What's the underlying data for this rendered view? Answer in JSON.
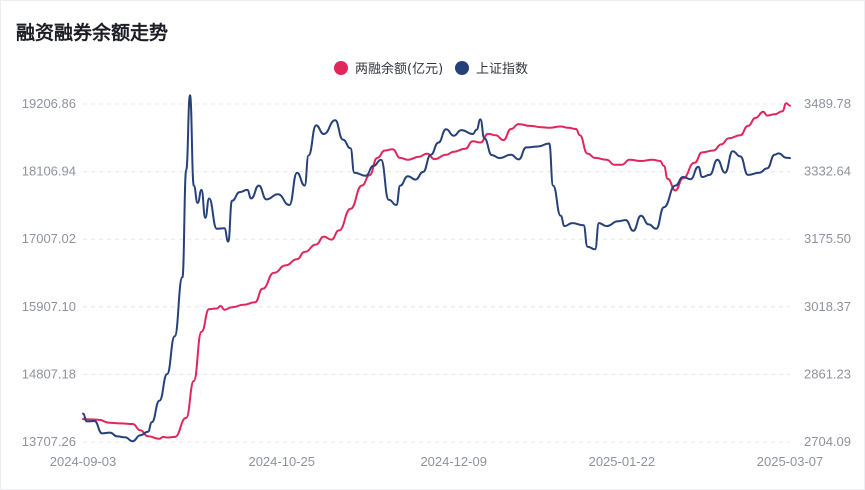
{
  "chart_data": {
    "type": "line",
    "title": "融资融券余额走势",
    "x_tick_labels": [
      "2024-09-03",
      "2024-10-25",
      "2024-12-09",
      "2025-01-22",
      "2025-03-07"
    ],
    "x_range": [
      "2024-09-03",
      "2025-03-07"
    ],
    "y_left": {
      "ticks": [
        "13707.26",
        "14807.18",
        "15907.10",
        "17007.02",
        "18106.94",
        "19206.86"
      ],
      "range": [
        13707.26,
        19206.86
      ]
    },
    "y_right": {
      "ticks": [
        "2704.09",
        "2861.23",
        "3018.37",
        "3175.50",
        "3332.64",
        "3489.78"
      ],
      "range": [
        2704.09,
        3489.78
      ]
    },
    "grid": true,
    "legend_position": "top-center",
    "colors": {
      "margin": "#e0265a",
      "index": "#26417a"
    },
    "series": [
      {
        "name": "两融余额(亿元)",
        "axis": "left",
        "points": [
          [
            "2024-09-03",
            14080
          ],
          [
            "2024-09-05",
            14075
          ],
          [
            "2024-09-07",
            14070
          ],
          [
            "2024-09-10",
            14020
          ],
          [
            "2024-09-13",
            14010
          ],
          [
            "2024-09-16",
            14000
          ],
          [
            "2024-09-18",
            13900
          ],
          [
            "2024-09-20",
            13800
          ],
          [
            "2024-09-23",
            13760
          ],
          [
            "2024-09-24",
            13790
          ],
          [
            "2024-09-25",
            13780
          ],
          [
            "2024-09-27",
            13790
          ],
          [
            "2024-09-30",
            14100
          ],
          [
            "2024-10-02",
            14700
          ],
          [
            "2024-10-04",
            15500
          ],
          [
            "2024-10-06",
            15870
          ],
          [
            "2024-10-08",
            15880
          ],
          [
            "2024-10-09",
            15920
          ],
          [
            "2024-10-10",
            15860
          ],
          [
            "2024-10-12",
            15900
          ],
          [
            "2024-10-15",
            15940
          ],
          [
            "2024-10-18",
            15980
          ],
          [
            "2024-10-20",
            16200
          ],
          [
            "2024-10-23",
            16460
          ],
          [
            "2024-10-26",
            16580
          ],
          [
            "2024-10-29",
            16680
          ],
          [
            "2024-10-31",
            16800
          ],
          [
            "2024-11-03",
            16920
          ],
          [
            "2024-11-05",
            17050
          ],
          [
            "2024-11-07",
            17000
          ],
          [
            "2024-11-09",
            17150
          ],
          [
            "2024-11-12",
            17500
          ],
          [
            "2024-11-15",
            17880
          ],
          [
            "2024-11-17",
            18050
          ],
          [
            "2024-11-19",
            18330
          ],
          [
            "2024-11-21",
            18450
          ],
          [
            "2024-11-23",
            18470
          ],
          [
            "2024-11-25",
            18330
          ],
          [
            "2024-11-27",
            18300
          ],
          [
            "2024-11-30",
            18350
          ],
          [
            "2024-12-02",
            18400
          ],
          [
            "2024-12-04",
            18310
          ],
          [
            "2024-12-07",
            18380
          ],
          [
            "2024-12-09",
            18430
          ],
          [
            "2024-12-12",
            18480
          ],
          [
            "2024-12-14",
            18600
          ],
          [
            "2024-12-16",
            18580
          ],
          [
            "2024-12-18",
            18720
          ],
          [
            "2024-12-20",
            18700
          ],
          [
            "2024-12-22",
            18620
          ],
          [
            "2024-12-24",
            18800
          ],
          [
            "2024-12-26",
            18880
          ],
          [
            "2024-12-29",
            18850
          ],
          [
            "2025-01-01",
            18830
          ],
          [
            "2025-01-03",
            18820
          ],
          [
            "2025-01-06",
            18840
          ],
          [
            "2025-01-08",
            18820
          ],
          [
            "2025-01-10",
            18800
          ],
          [
            "2025-01-11",
            18700
          ],
          [
            "2025-01-13",
            18400
          ],
          [
            "2025-01-15",
            18330
          ],
          [
            "2025-01-18",
            18300
          ],
          [
            "2025-01-20",
            18220
          ],
          [
            "2025-01-22",
            18220
          ],
          [
            "2025-01-24",
            18300
          ],
          [
            "2025-01-27",
            18280
          ],
          [
            "2025-01-30",
            18300
          ],
          [
            "2025-02-01",
            18280
          ],
          [
            "2025-02-02",
            18200
          ],
          [
            "2025-02-03",
            17990
          ],
          [
            "2025-02-05",
            17800
          ],
          [
            "2025-02-07",
            18000
          ],
          [
            "2025-02-10",
            18250
          ],
          [
            "2025-02-12",
            18420
          ],
          [
            "2025-02-15",
            18450
          ],
          [
            "2025-02-17",
            18550
          ],
          [
            "2025-02-19",
            18650
          ],
          [
            "2025-02-22",
            18700
          ],
          [
            "2025-02-24",
            18850
          ],
          [
            "2025-02-26",
            18980
          ],
          [
            "2025-02-28",
            19080
          ],
          [
            "2025-03-01",
            19020
          ],
          [
            "2025-03-03",
            19040
          ],
          [
            "2025-03-05",
            19090
          ],
          [
            "2025-03-06",
            19220
          ],
          [
            "2025-03-07",
            19180
          ]
        ]
      },
      {
        "name": "上证指数",
        "axis": "right",
        "points": [
          [
            "2024-09-03",
            2770
          ],
          [
            "2024-09-04",
            2752
          ],
          [
            "2024-09-06",
            2753
          ],
          [
            "2024-09-08",
            2724
          ],
          [
            "2024-09-10",
            2726
          ],
          [
            "2024-09-12",
            2717
          ],
          [
            "2024-09-14",
            2715
          ],
          [
            "2024-09-16",
            2706
          ],
          [
            "2024-09-18",
            2720
          ],
          [
            "2024-09-20",
            2728
          ],
          [
            "2024-09-21",
            2750
          ],
          [
            "2024-09-23",
            2800
          ],
          [
            "2024-09-25",
            2862
          ],
          [
            "2024-09-27",
            2950
          ],
          [
            "2024-09-29",
            3087
          ],
          [
            "2024-09-30",
            3336
          ],
          [
            "2024-10-01",
            3510
          ],
          [
            "2024-10-02",
            3300
          ],
          [
            "2024-10-03",
            3260
          ],
          [
            "2024-10-04",
            3290
          ],
          [
            "2024-10-05",
            3225
          ],
          [
            "2024-10-06",
            3270
          ],
          [
            "2024-10-08",
            3200
          ],
          [
            "2024-10-10",
            3201
          ],
          [
            "2024-10-11",
            3170
          ],
          [
            "2024-10-12",
            3265
          ],
          [
            "2024-10-14",
            3285
          ],
          [
            "2024-10-16",
            3290
          ],
          [
            "2024-10-17",
            3270
          ],
          [
            "2024-10-19",
            3300
          ],
          [
            "2024-10-21",
            3268
          ],
          [
            "2024-10-24",
            3280
          ],
          [
            "2024-10-27",
            3255
          ],
          [
            "2024-10-29",
            3330
          ],
          [
            "2024-10-31",
            3300
          ],
          [
            "2024-11-01",
            3370
          ],
          [
            "2024-11-03",
            3440
          ],
          [
            "2024-11-05",
            3420
          ],
          [
            "2024-11-08",
            3452
          ],
          [
            "2024-11-10",
            3407
          ],
          [
            "2024-11-12",
            3387
          ],
          [
            "2024-11-13",
            3330
          ],
          [
            "2024-11-16",
            3323
          ],
          [
            "2024-11-18",
            3346
          ],
          [
            "2024-11-20",
            3360
          ],
          [
            "2024-11-22",
            3267
          ],
          [
            "2024-11-24",
            3255
          ],
          [
            "2024-11-25",
            3300
          ],
          [
            "2024-11-27",
            3322
          ],
          [
            "2024-11-29",
            3314
          ],
          [
            "2024-12-01",
            3332
          ],
          [
            "2024-12-03",
            3372
          ],
          [
            "2024-12-05",
            3400
          ],
          [
            "2024-12-07",
            3431
          ],
          [
            "2024-12-09",
            3416
          ],
          [
            "2024-12-11",
            3429
          ],
          [
            "2024-12-14",
            3420
          ],
          [
            "2024-12-15",
            3430
          ],
          [
            "2024-12-16",
            3454
          ],
          [
            "2024-12-17",
            3410
          ],
          [
            "2024-12-19",
            3371
          ],
          [
            "2024-12-21",
            3364
          ],
          [
            "2024-12-24",
            3372
          ],
          [
            "2024-12-26",
            3361
          ],
          [
            "2024-12-28",
            3389
          ],
          [
            "2024-12-31",
            3391
          ],
          [
            "2025-01-03",
            3398
          ],
          [
            "2025-01-04",
            3300
          ],
          [
            "2025-01-06",
            3230
          ],
          [
            "2025-01-07",
            3206
          ],
          [
            "2025-01-09",
            3213
          ],
          [
            "2025-01-12",
            3208
          ],
          [
            "2025-01-13",
            3158
          ],
          [
            "2025-01-15",
            3152
          ],
          [
            "2025-01-16",
            3213
          ],
          [
            "2025-01-18",
            3206
          ],
          [
            "2025-01-21",
            3217
          ],
          [
            "2025-01-23",
            3220
          ],
          [
            "2025-01-25",
            3195
          ],
          [
            "2025-01-27",
            3230
          ],
          [
            "2025-01-29",
            3210
          ],
          [
            "2025-01-31",
            3200
          ],
          [
            "2025-02-02",
            3250
          ],
          [
            "2025-02-05",
            3300
          ],
          [
            "2025-02-07",
            3320
          ],
          [
            "2025-02-09",
            3315
          ],
          [
            "2025-02-11",
            3344
          ],
          [
            "2025-02-12",
            3320
          ],
          [
            "2025-02-14",
            3325
          ],
          [
            "2025-02-16",
            3360
          ],
          [
            "2025-02-18",
            3330
          ],
          [
            "2025-02-20",
            3380
          ],
          [
            "2025-02-22",
            3368
          ],
          [
            "2025-02-24",
            3325
          ],
          [
            "2025-02-27",
            3330
          ],
          [
            "2025-03-01",
            3340
          ],
          [
            "2025-03-03",
            3372
          ],
          [
            "2025-03-04",
            3375
          ],
          [
            "2025-03-06",
            3365
          ],
          [
            "2025-03-07",
            3364
          ]
        ]
      }
    ]
  }
}
